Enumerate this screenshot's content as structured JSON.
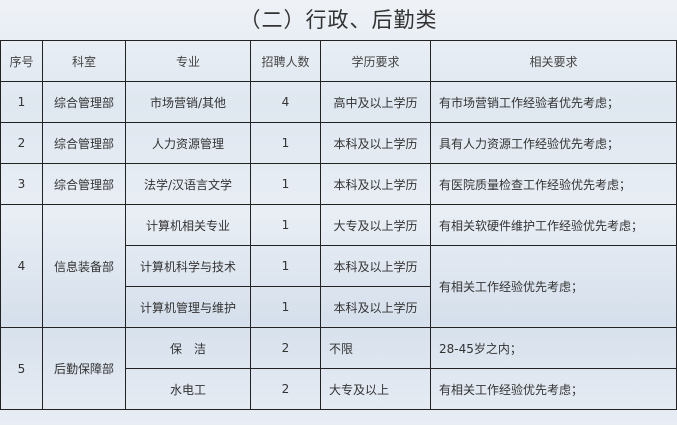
{
  "title": "（二）行政、后勤类",
  "headers": [
    "序号",
    "科室",
    "专业",
    "招聘人数",
    "学历要求",
    "相关要求"
  ],
  "rows": [
    {
      "no": "1",
      "dept": "综合管理部",
      "major": "市场营销/其他",
      "count": "4",
      "edu": "高中及以上学历",
      "req": "有市场营销工作经验者优先考虑；"
    },
    {
      "no": "2",
      "dept": "综合管理部",
      "major": "人力资源管理",
      "count": "1",
      "edu": "本科及以上学历",
      "req": "具有人力资源工作经验优先考虑；"
    },
    {
      "no": "3",
      "dept": "综合管理部",
      "major": "法学/汉语言文学",
      "count": "1",
      "edu": "本科及以上学历",
      "req": "有医院质量检查工作经验优先考虑；"
    },
    {
      "no": "4",
      "dept": "信息装备部",
      "major": "计算机相关专业",
      "count": "1",
      "edu": "大专及以上学历",
      "req": "有相关软硬件维护工作经验优先考虑；"
    },
    {
      "major": "计算机科学与技术",
      "count": "1",
      "edu": "本科及以上学历",
      "req": "有相关工作经验优先考虑；"
    },
    {
      "major": "计算机管理与维护",
      "count": "1",
      "edu": "本科及以上学历"
    },
    {
      "no": "5",
      "dept": "后勤保障部",
      "major": "保　洁",
      "count": "2",
      "edu": "不限",
      "req": "28-45岁之内；"
    },
    {
      "major": "水电工",
      "count": "2",
      "edu": "大专及以上",
      "req": "有相关工作经验优先考虑；"
    }
  ]
}
